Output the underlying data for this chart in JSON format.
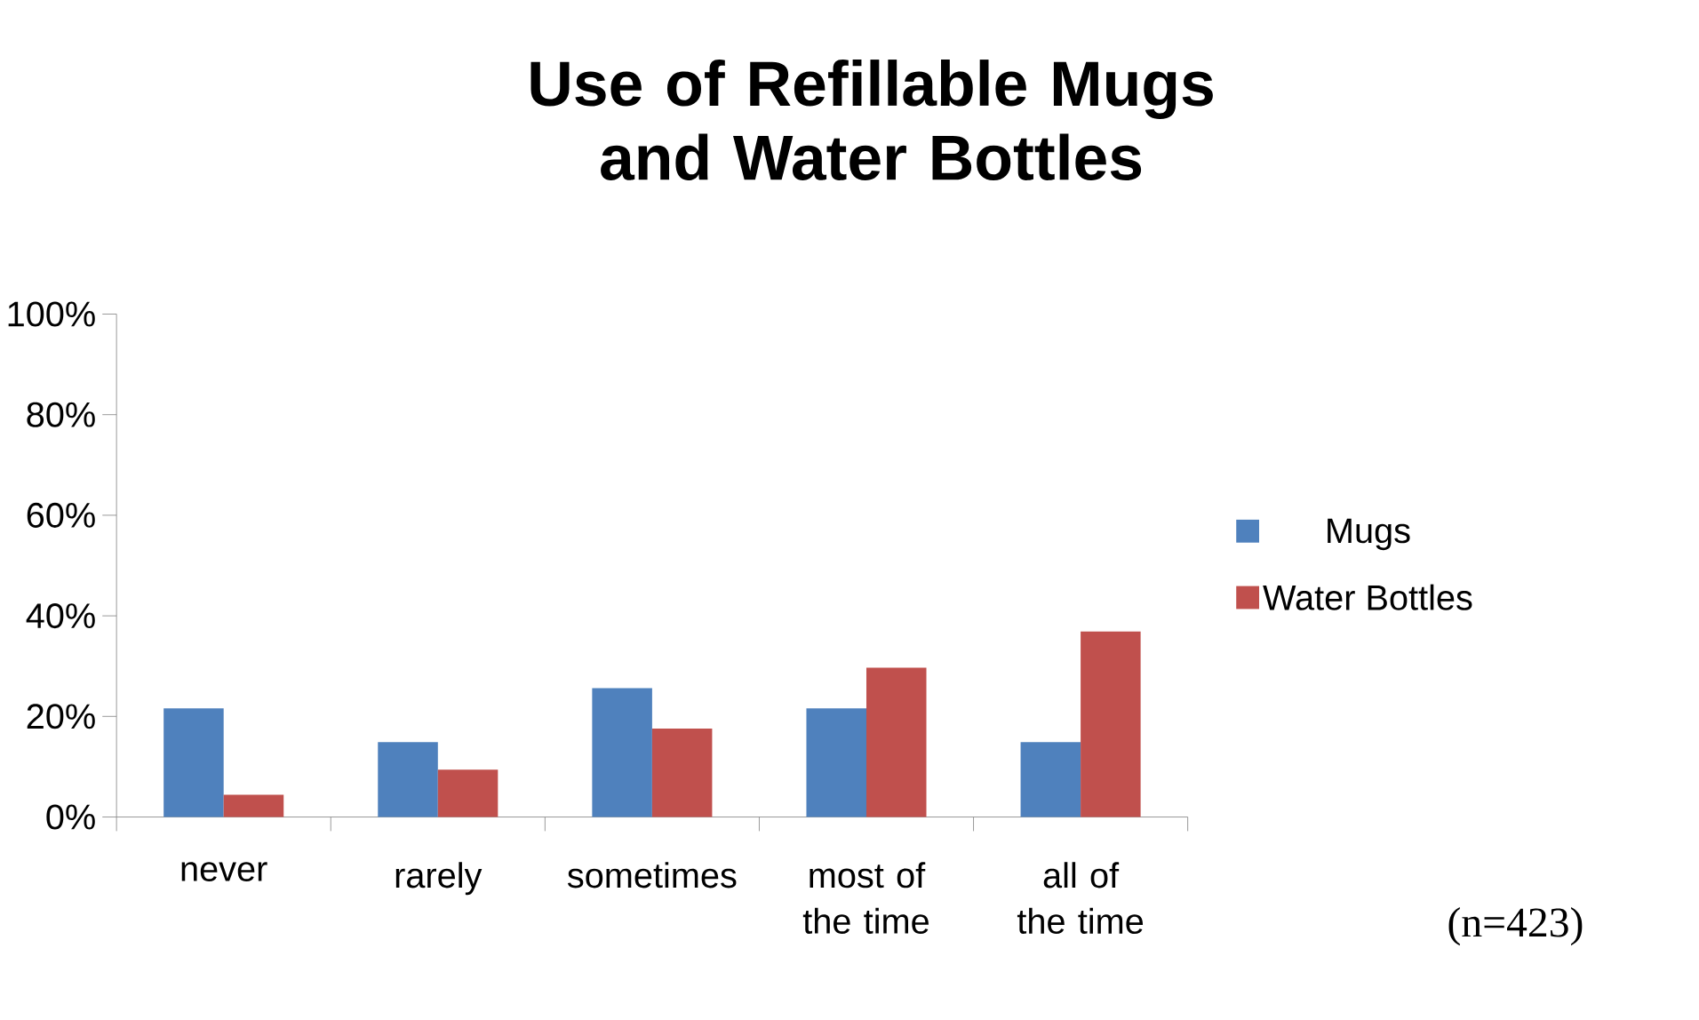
{
  "chart_data": {
    "type": "bar",
    "title": "Use of Refillable Mugs and Water Bottles",
    "categories": [
      "never",
      "rarely",
      "sometimes",
      "most of the time",
      "all of the time"
    ],
    "series": [
      {
        "name": "Mugs",
        "color": "#4f81bd",
        "values": [
          21.6,
          14.9,
          25.6,
          21.6,
          14.9
        ]
      },
      {
        "name": "Water Bottles",
        "color": "#c0504d",
        "values": [
          4.4,
          9.4,
          17.6,
          29.7,
          36.9
        ]
      }
    ],
    "ylim": [
      0,
      100
    ],
    "yticks": [
      {
        "value": 0,
        "label": "0%"
      },
      {
        "value": 20,
        "label": "20%"
      },
      {
        "value": 40,
        "label": "40%"
      },
      {
        "value": 60,
        "label": "60%"
      },
      {
        "value": 80,
        "label": "80%"
      },
      {
        "value": 100,
        "label": "100%"
      }
    ],
    "grid": false,
    "legend": "right",
    "annotations": [
      "(n=423)"
    ]
  }
}
